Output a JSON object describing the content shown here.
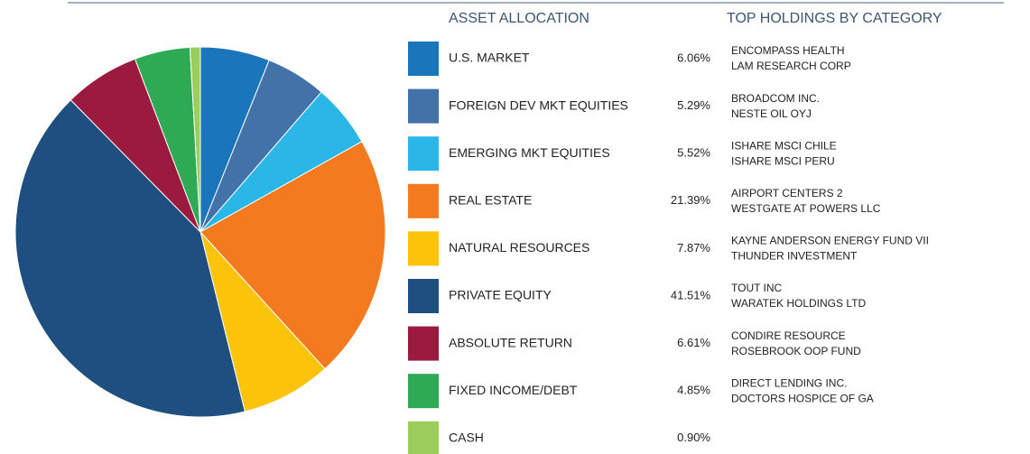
{
  "chart_data": {
    "type": "pie",
    "header_left": "ASSET ALLOCATION",
    "header_right": "TOP HOLDINGS BY CATEGORY",
    "categories": [
      "U.S. MARKET",
      "FOREIGN DEV MKT EQUITIES",
      "EMERGING MKT EQUITIES",
      "REAL ESTATE",
      "NATURAL RESOURCES",
      "PRIVATE EQUITY",
      "ABSOLUTE RETURN",
      "FIXED INCOME/DEBT",
      "CASH"
    ],
    "values": [
      6.06,
      5.29,
      5.52,
      21.39,
      7.87,
      41.51,
      6.61,
      4.85,
      0.9
    ],
    "value_labels": [
      "6.06%",
      "5.29%",
      "5.52%",
      "21.39%",
      "7.87%",
      "41.51%",
      "6.61%",
      "4.85%",
      "0.90%"
    ],
    "colors": [
      "#1a75bb",
      "#4272a8",
      "#2ab7e8",
      "#f47a20",
      "#fcc30b",
      "#1f4e80",
      "#9b1b40",
      "#2eaa55",
      "#9ccc5a"
    ],
    "holdings": [
      [
        "ENCOMPASS HEALTH",
        "LAM RESEARCH CORP"
      ],
      [
        "BROADCOM INC.",
        "NESTE OIL OYJ"
      ],
      [
        "ISHARE MSCI CHILE",
        "ISHARE MSCI PERU"
      ],
      [
        "AIRPORT CENTERS 2",
        "WESTGATE AT POWERS LLC"
      ],
      [
        "KAYNE ANDERSON ENERGY FUND VII",
        "THUNDER INVESTMENT"
      ],
      [
        "TOUT INC",
        "WARATEK HOLDINGS LTD"
      ],
      [
        "CONDIRE RESOURCE",
        "ROSEBROOK OOP FUND"
      ],
      [
        "DIRECT LENDING INC.",
        "DOCTORS HOSPICE OF GA"
      ],
      []
    ]
  }
}
